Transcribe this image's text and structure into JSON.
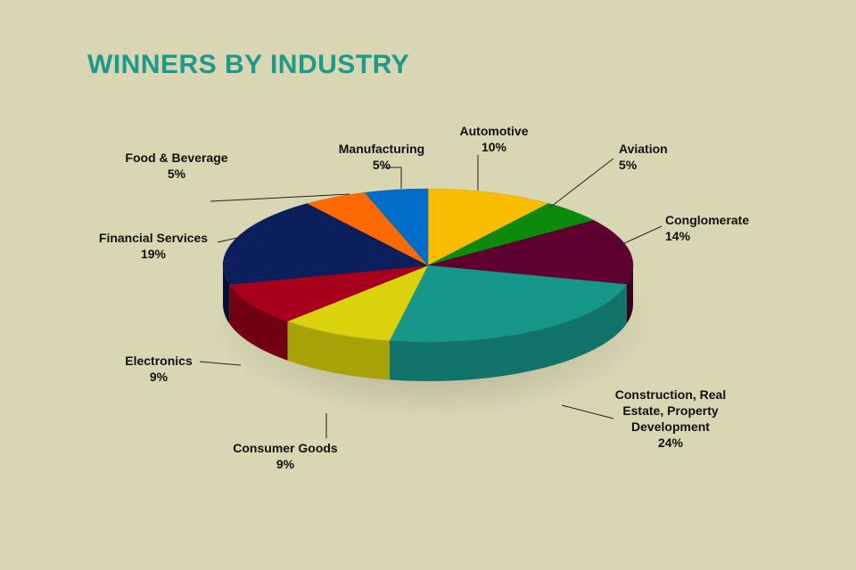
{
  "chart_data": {
    "type": "pie",
    "title": "WINNERS BY INDUSTRY",
    "title_color": "#1e9a8a",
    "background": "#d9d6b4",
    "three_d": true,
    "slices": [
      {
        "label": "Automotive",
        "percent_label": "10%",
        "value": 10,
        "color": "#f9bd00"
      },
      {
        "label": "Aviation",
        "percent_label": "5%",
        "value": 5,
        "color": "#0b8a0b"
      },
      {
        "label": "Conglomerate",
        "percent_label": "14%",
        "value": 14,
        "color": "#5e0030"
      },
      {
        "label": "Construction, Real Estate, Property Development",
        "percent_label": "24%",
        "value": 24,
        "color": "#16978a"
      },
      {
        "label": "Consumer Goods",
        "percent_label": "9%",
        "value": 9,
        "color": "#dad20c"
      },
      {
        "label": "Electronics",
        "percent_label": "9%",
        "value": 9,
        "color": "#a8001c"
      },
      {
        "label": "Financial Services",
        "percent_label": "19%",
        "value": 19,
        "color": "#0a1f5c"
      },
      {
        "label": "Food & Beverage",
        "percent_label": "5%",
        "value": 5,
        "color": "#ff6a00"
      },
      {
        "label": "Manufacturing",
        "percent_label": "5%",
        "value": 5,
        "color": "#006ec8"
      }
    ]
  }
}
